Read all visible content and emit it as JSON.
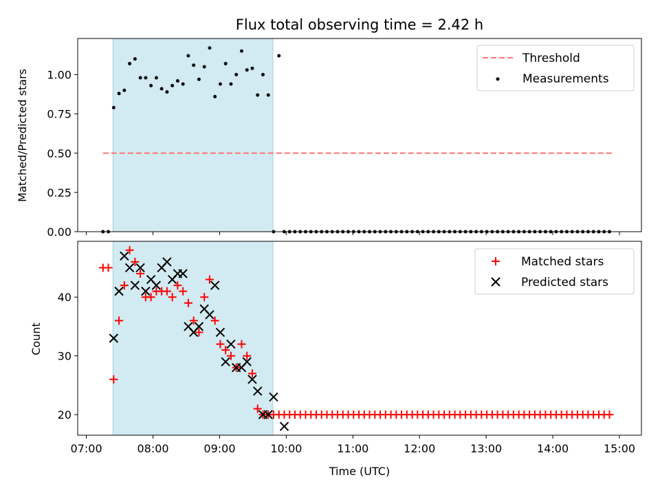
{
  "chart_data": [
    {
      "type": "scatter",
      "title": "Flux total observing time = 2.42 h",
      "ylabel": "Matched/Predicted stars",
      "xlim": [
        6.87,
        15.33
      ],
      "ylim": [
        0,
        1.23
      ],
      "yticks": [
        0,
        0.25,
        0.5,
        0.75,
        1.0
      ],
      "ytick_labels": [
        "0.00",
        "0.25",
        "0.50",
        "0.75",
        "1.00"
      ],
      "shaded_region": [
        7.4,
        9.8
      ],
      "shade_color": "#add8e6",
      "threshold": {
        "name": "Threshold",
        "value": 0.5,
        "x_range": [
          7.25,
          14.9
        ],
        "color": "#ff7070"
      },
      "legend": [
        "Threshold",
        "Measurements"
      ],
      "series": [
        {
          "name": "Measurements",
          "color": "#000000",
          "x": [
            7.25,
            7.33,
            7.41,
            7.49,
            7.57,
            7.65,
            7.73,
            7.81,
            7.89,
            7.97,
            8.05,
            8.13,
            8.21,
            8.29,
            8.37,
            8.45,
            8.53,
            8.61,
            8.69,
            8.77,
            8.85,
            8.93,
            9.01,
            9.09,
            9.17,
            9.25,
            9.33,
            9.41,
            9.49,
            9.57,
            9.65,
            9.73,
            9.81,
            9.89,
            9.97,
            10.05,
            10.13,
            10.21,
            10.29,
            10.37,
            10.45,
            10.53,
            10.61,
            10.69,
            10.77,
            10.85,
            10.93,
            11.01,
            11.09,
            11.17,
            11.25,
            11.33,
            11.41,
            11.49,
            11.57,
            11.65,
            11.73,
            11.81,
            11.89,
            11.97,
            12.05,
            12.13,
            12.21,
            12.29,
            12.37,
            12.45,
            12.53,
            12.61,
            12.69,
            12.77,
            12.85,
            12.93,
            13.01,
            13.09,
            13.17,
            13.25,
            13.33,
            13.41,
            13.49,
            13.57,
            13.65,
            13.73,
            13.81,
            13.89,
            13.97,
            14.05,
            14.13,
            14.21,
            14.29,
            14.37,
            14.45,
            14.53,
            14.61,
            14.69,
            14.77,
            14.85
          ],
          "y": [
            0,
            0,
            0.79,
            0.88,
            0.9,
            1.07,
            1.1,
            0.98,
            0.98,
            0.93,
            0.98,
            0.91,
            0.89,
            0.93,
            0.96,
            0.94,
            1.12,
            1.06,
            0.97,
            1.05,
            1.17,
            0.86,
            0.94,
            1.07,
            0.94,
            1.0,
            1.15,
            1.03,
            1.04,
            0.87,
            1.0,
            0.87,
            0,
            1.12,
            0,
            0,
            0,
            0,
            0,
            0,
            0,
            0,
            0,
            0,
            0,
            0,
            0,
            0,
            0,
            0,
            0,
            0,
            0,
            0,
            0,
            0,
            0,
            0,
            0,
            0,
            0,
            0,
            0,
            0,
            0,
            0,
            0,
            0,
            0,
            0,
            0,
            0,
            0,
            0,
            0,
            0,
            0,
            0,
            0,
            0,
            0,
            0,
            0,
            0,
            0,
            0,
            0,
            0,
            0,
            0,
            0,
            0,
            0,
            0,
            0,
            0
          ]
        }
      ]
    },
    {
      "type": "scatter",
      "xlabel": "Time (UTC)",
      "ylabel": "Count",
      "xlim": [
        6.87,
        15.33
      ],
      "ylim": [
        16.5,
        49.5
      ],
      "yticks": [
        20,
        30,
        40
      ],
      "ytick_labels": [
        "20",
        "30",
        "40"
      ],
      "xticks": [
        7,
        8,
        9,
        10,
        11,
        12,
        13,
        14,
        15
      ],
      "xtick_labels": [
        "07:00",
        "08:00",
        "09:00",
        "10:00",
        "11:00",
        "12:00",
        "13:00",
        "14:00",
        "15:00"
      ],
      "shaded_region": [
        7.4,
        9.8
      ],
      "shade_color": "#add8e6",
      "legend": [
        "Matched stars",
        "Predicted stars"
      ],
      "series": [
        {
          "name": "Matched stars",
          "marker": "+",
          "color": "#ff0000",
          "x": [
            7.25,
            7.33,
            7.41,
            7.49,
            7.57,
            7.65,
            7.73,
            7.81,
            7.89,
            7.97,
            8.05,
            8.13,
            8.21,
            8.29,
            8.37,
            8.45,
            8.53,
            8.61,
            8.69,
            8.77,
            8.85,
            8.93,
            9.01,
            9.09,
            9.17,
            9.25,
            9.33,
            9.41,
            9.49,
            9.57,
            9.65,
            9.73,
            9.81,
            9.89,
            9.97,
            10.05,
            10.13,
            10.21,
            10.29,
            10.37,
            10.45,
            10.53,
            10.61,
            10.69,
            10.77,
            10.85,
            10.93,
            11.01,
            11.09,
            11.17,
            11.25,
            11.33,
            11.41,
            11.49,
            11.57,
            11.65,
            11.73,
            11.81,
            11.89,
            11.97,
            12.05,
            12.13,
            12.21,
            12.29,
            12.37,
            12.45,
            12.53,
            12.61,
            12.69,
            12.77,
            12.85,
            12.93,
            13.01,
            13.09,
            13.17,
            13.25,
            13.33,
            13.41,
            13.49,
            13.57,
            13.65,
            13.73,
            13.81,
            13.89,
            13.97,
            14.05,
            14.13,
            14.21,
            14.29,
            14.37,
            14.45,
            14.53,
            14.61,
            14.69,
            14.77,
            14.85
          ],
          "y": [
            45,
            45,
            26,
            36,
            42,
            48,
            46,
            44,
            40,
            40,
            41,
            41,
            41,
            40,
            42,
            41,
            39,
            36,
            34,
            40,
            43,
            36,
            32,
            31,
            30,
            28,
            32,
            30,
            27,
            21,
            20,
            20,
            20,
            20,
            20,
            20,
            20,
            20,
            20,
            20,
            20,
            20,
            20,
            20,
            20,
            20,
            20,
            20,
            20,
            20,
            20,
            20,
            20,
            20,
            20,
            20,
            20,
            20,
            20,
            20,
            20,
            20,
            20,
            20,
            20,
            20,
            20,
            20,
            20,
            20,
            20,
            20,
            20,
            20,
            20,
            20,
            20,
            20,
            20,
            20,
            20,
            20,
            20,
            20,
            20,
            20,
            20,
            20,
            20,
            20,
            20,
            20,
            20,
            20,
            20,
            20
          ]
        },
        {
          "name": "Predicted stars",
          "marker": "x",
          "color": "#000000",
          "x": [
            7.41,
            7.49,
            7.57,
            7.65,
            7.73,
            7.81,
            7.89,
            7.97,
            8.05,
            8.13,
            8.21,
            8.29,
            8.37,
            8.45,
            8.53,
            8.61,
            8.69,
            8.77,
            8.85,
            8.93,
            9.01,
            9.09,
            9.17,
            9.25,
            9.33,
            9.41,
            9.49,
            9.57,
            9.65,
            9.73,
            9.81,
            9.97
          ],
          "y": [
            33,
            41,
            47,
            45,
            42,
            45,
            41,
            43,
            42,
            45,
            46,
            43,
            44,
            44,
            35,
            34,
            35,
            38,
            37,
            42,
            34,
            29,
            32,
            28,
            28,
            29,
            26,
            24,
            20,
            20,
            23,
            18
          ]
        }
      ]
    }
  ]
}
